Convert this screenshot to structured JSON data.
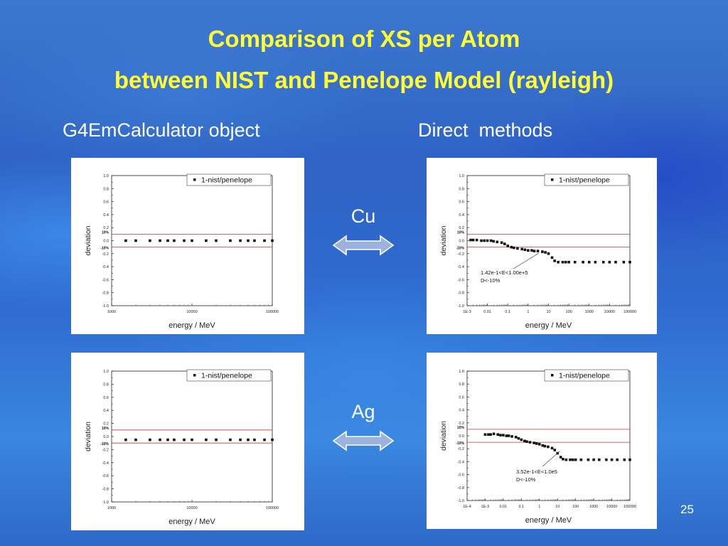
{
  "slide": {
    "title_line1": "Comparison of XS per Atom",
    "title_line2": "between NIST and Penelope Model (rayleigh)",
    "left_heading": "G4EmCalculator object",
    "right_heading": "Direct  methods",
    "element_cu": "Cu",
    "element_ag": "Ag",
    "page_number": "25",
    "colors": {
      "title": "#ffff33",
      "text": "#ffffff",
      "arrow_fill": "#9bb3dc",
      "limit_line": "#cc3333"
    }
  },
  "chart_data": [
    {
      "id": "cu_calculator",
      "type": "scatter",
      "xlabel": "energy / MeV",
      "ylabel": "deviation",
      "xscale": "log",
      "xlim": [
        1000,
        100000
      ],
      "ylim": [
        -1.0,
        1.0
      ],
      "xticks": [
        "1000",
        "10000",
        "100000"
      ],
      "yticks": [
        "1.0",
        "0.8",
        "0.6",
        "0.4",
        "0.2",
        "0.0",
        "-0.2",
        "-0.4",
        "-0.6",
        "-0.8",
        "-1.0"
      ],
      "limit_labels": [
        "10%",
        "-10%"
      ],
      "limits": [
        0.1,
        -0.1
      ],
      "legend": "1-nist/penelope",
      "legend_position": "top-right",
      "series": [
        {
          "x": [
            1500,
            2000,
            3000,
            4000,
            5000,
            6000,
            8000,
            10000,
            15000,
            20000,
            30000,
            40000,
            50000,
            60000,
            80000,
            100000
          ],
          "y": [
            0,
            0,
            0,
            0,
            0,
            0,
            0,
            0,
            0,
            0,
            0,
            0,
            0,
            0,
            0,
            0
          ]
        }
      ]
    },
    {
      "id": "cu_direct",
      "type": "scatter",
      "xlabel": "energy / MeV",
      "ylabel": "deviation",
      "xscale": "log",
      "xlim": [
        0.001,
        100000
      ],
      "ylim": [
        -1.0,
        1.0
      ],
      "xticks": [
        "1E-3",
        "0.01",
        "0.1",
        "1",
        "10",
        "100",
        "1000",
        "10000",
        "100000"
      ],
      "yticks": [
        "1.0",
        "0.8",
        "0.6",
        "0.4",
        "0.2",
        "0.0",
        "-0.2",
        "-0.4",
        "-0.6",
        "-0.8",
        "-1.0"
      ],
      "limit_labels": [
        "10%",
        "-10%"
      ],
      "limits": [
        0.1,
        -0.1
      ],
      "legend": "1-nist/penelope",
      "legend_position": "top-right",
      "annotation": [
        "1.42e-1<E<1.00e+5",
        "D<-10%"
      ],
      "series": [
        {
          "x": [
            0.0015,
            0.002,
            0.003,
            0.005,
            0.007,
            0.01,
            0.015,
            0.02,
            0.03,
            0.05,
            0.07,
            0.1,
            0.15,
            0.2,
            0.3,
            0.5,
            0.7,
            1,
            1.5,
            2,
            3,
            5,
            7,
            10,
            15,
            20,
            30,
            50,
            70,
            100,
            200,
            500,
            1000,
            2000,
            5000,
            10000,
            20000,
            50000,
            100000
          ],
          "y": [
            0.01,
            0.01,
            0.01,
            0.0,
            0.0,
            0.0,
            0.0,
            -0.01,
            -0.02,
            -0.03,
            -0.05,
            -0.08,
            -0.1,
            -0.11,
            -0.12,
            -0.13,
            -0.14,
            -0.15,
            -0.15,
            -0.16,
            -0.16,
            -0.17,
            -0.18,
            -0.2,
            -0.26,
            -0.31,
            -0.33,
            -0.33,
            -0.33,
            -0.33,
            -0.33,
            -0.33,
            -0.33,
            -0.33,
            -0.33,
            -0.33,
            -0.33,
            -0.33,
            -0.33
          ]
        }
      ]
    },
    {
      "id": "ag_calculator",
      "type": "scatter",
      "xlabel": "energy / MeV",
      "ylabel": "deviation",
      "xscale": "log",
      "xlim": [
        1000,
        100000
      ],
      "ylim": [
        -1.0,
        1.0
      ],
      "xticks": [
        "1000",
        "10000",
        "100000"
      ],
      "yticks": [
        "1.0",
        "0.8",
        "0.6",
        "0.4",
        "0.2",
        "0.0",
        "-0.2",
        "-0.4",
        "-0.6",
        "-0.8",
        "-1.0"
      ],
      "limit_labels": [
        "10%",
        "-10%"
      ],
      "limits": [
        0.1,
        -0.1
      ],
      "legend": "1-nist/penelope",
      "legend_position": "top-right",
      "series": [
        {
          "x": [
            1500,
            2000,
            3000,
            4000,
            5000,
            6000,
            8000,
            10000,
            15000,
            20000,
            30000,
            40000,
            50000,
            60000,
            80000,
            100000
          ],
          "y": [
            -0.05,
            -0.05,
            -0.05,
            -0.05,
            -0.05,
            -0.05,
            -0.05,
            -0.05,
            -0.05,
            -0.05,
            -0.05,
            -0.05,
            -0.05,
            -0.05,
            -0.05,
            -0.05
          ]
        }
      ]
    },
    {
      "id": "ag_direct",
      "type": "scatter",
      "xlabel": "energy / MeV",
      "ylabel": "deviation",
      "xscale": "log",
      "xlim": [
        0.0001,
        100000
      ],
      "ylim": [
        -1.0,
        1.0
      ],
      "xticks": [
        "1E-4",
        "1E-3",
        "0.01",
        "0.1",
        "1",
        "10",
        "100",
        "1000",
        "10000",
        "100000"
      ],
      "yticks": [
        "1.0",
        "0.8",
        "0.6",
        "0.4",
        "0.2",
        "0.0",
        "-0.2",
        "-0.4",
        "-0.6",
        "-0.8",
        "-1.0"
      ],
      "limit_labels": [
        "10%",
        "-10%"
      ],
      "limits": [
        0.1,
        -0.1
      ],
      "legend": "1-nist/penelope",
      "legend_position": "top-right",
      "annotation": [
        "3.52e-1<E<1.0e5",
        "D<-10%"
      ],
      "series": [
        {
          "x": [
            0.001,
            0.0015,
            0.002,
            0.003,
            0.005,
            0.007,
            0.01,
            0.015,
            0.02,
            0.03,
            0.05,
            0.07,
            0.1,
            0.15,
            0.2,
            0.3,
            0.5,
            0.7,
            1,
            1.5,
            2,
            3,
            5,
            7,
            10,
            15,
            20,
            30,
            50,
            70,
            100,
            200,
            500,
            1000,
            2000,
            5000,
            10000,
            20000,
            50000,
            100000
          ],
          "y": [
            0.02,
            0.02,
            0.02,
            0.03,
            0.02,
            0.01,
            0.01,
            0.0,
            0.0,
            -0.01,
            -0.02,
            -0.04,
            -0.06,
            -0.08,
            -0.09,
            -0.1,
            -0.11,
            -0.12,
            -0.13,
            -0.15,
            -0.16,
            -0.17,
            -0.19,
            -0.22,
            -0.27,
            -0.33,
            -0.36,
            -0.37,
            -0.37,
            -0.37,
            -0.37,
            -0.37,
            -0.37,
            -0.37,
            -0.37,
            -0.37,
            -0.37,
            -0.37,
            -0.37,
            -0.37
          ]
        }
      ]
    }
  ]
}
